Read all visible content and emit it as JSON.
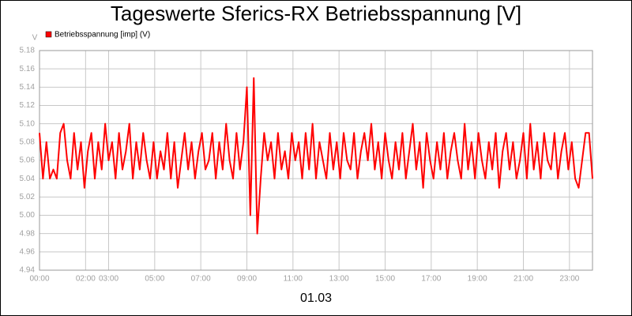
{
  "chart_data": {
    "type": "line",
    "title": "Tageswerte Sferics-RX Betriebsspannung [V]",
    "y_label": "V",
    "x_label": "01.03",
    "xlim": [
      0,
      24
    ],
    "xticks": [
      {
        "value": 0,
        "label": "00:00"
      },
      {
        "value": 2,
        "label": "02:00"
      },
      {
        "value": 3,
        "label": "03:00"
      },
      {
        "value": 5,
        "label": "05:00"
      },
      {
        "value": 7,
        "label": "07:00"
      },
      {
        "value": 9,
        "label": "09:00"
      },
      {
        "value": 11,
        "label": "11:00"
      },
      {
        "value": 13,
        "label": "13:00"
      },
      {
        "value": 15,
        "label": "15:00"
      },
      {
        "value": 17,
        "label": "17:00"
      },
      {
        "value": 19,
        "label": "19:00"
      },
      {
        "value": 21,
        "label": "21:00"
      },
      {
        "value": 23,
        "label": "23:00"
      }
    ],
    "ylim": [
      4.94,
      5.18
    ],
    "yticks": [
      4.94,
      4.96,
      4.98,
      {
        "value": 5,
        "label": "5.00"
      },
      5.02,
      5.04,
      5.06,
      5.08,
      {
        "value": 5.1,
        "label": "5.10"
      },
      5.12,
      5.14,
      5.16,
      5.18
    ],
    "grid": true,
    "x": [
      0,
      0.15,
      0.3,
      0.45,
      0.6,
      0.75,
      0.9,
      1.05,
      1.2,
      1.35,
      1.5,
      1.65,
      1.8,
      1.95,
      2.1,
      2.25,
      2.4,
      2.55,
      2.7,
      2.85,
      3,
      3.15,
      3.3,
      3.45,
      3.6,
      3.75,
      3.9,
      4.05,
      4.2,
      4.35,
      4.5,
      4.65,
      4.8,
      4.95,
      5.1,
      5.25,
      5.4,
      5.55,
      5.7,
      5.85,
      6,
      6.15,
      6.3,
      6.45,
      6.6,
      6.75,
      6.9,
      7.05,
      7.2,
      7.35,
      7.5,
      7.65,
      7.8,
      7.95,
      8.1,
      8.25,
      8.4,
      8.55,
      8.7,
      8.85,
      9,
      9.15,
      9.3,
      9.45,
      9.6,
      9.75,
      9.9,
      10.05,
      10.2,
      10.35,
      10.5,
      10.65,
      10.8,
      10.95,
      11.1,
      11.25,
      11.4,
      11.55,
      11.7,
      11.85,
      12,
      12.15,
      12.3,
      12.45,
      12.6,
      12.75,
      12.9,
      13.05,
      13.2,
      13.35,
      13.5,
      13.65,
      13.8,
      13.95,
      14.1,
      14.25,
      14.4,
      14.55,
      14.7,
      14.85,
      15,
      15.15,
      15.3,
      15.45,
      15.6,
      15.75,
      15.9,
      16.05,
      16.2,
      16.35,
      16.5,
      16.65,
      16.8,
      16.95,
      17.1,
      17.25,
      17.4,
      17.55,
      17.7,
      17.85,
      18,
      18.15,
      18.3,
      18.45,
      18.6,
      18.75,
      18.9,
      19.05,
      19.2,
      19.35,
      19.5,
      19.65,
      19.8,
      19.95,
      20.1,
      20.25,
      20.4,
      20.55,
      20.7,
      20.85,
      21,
      21.15,
      21.3,
      21.45,
      21.6,
      21.75,
      21.9,
      22.05,
      22.2,
      22.35,
      22.5,
      22.65,
      22.8,
      22.95,
      23.1,
      23.25,
      23.4,
      23.55,
      23.7,
      23.85,
      24
    ],
    "series": [
      {
        "name": "Betriebsspannung [imp] (V)",
        "color": "#ff0000",
        "values": [
          5.09,
          5.04,
          5.08,
          5.04,
          5.05,
          5.04,
          5.09,
          5.1,
          5.06,
          5.04,
          5.09,
          5.05,
          5.08,
          5.03,
          5.07,
          5.09,
          5.04,
          5.08,
          5.05,
          5.1,
          5.06,
          5.08,
          5.04,
          5.09,
          5.05,
          5.07,
          5.1,
          5.04,
          5.08,
          5.05,
          5.09,
          5.06,
          5.04,
          5.08,
          5.04,
          5.07,
          5.05,
          5.09,
          5.04,
          5.08,
          5.03,
          5.06,
          5.09,
          5.05,
          5.08,
          5.04,
          5.07,
          5.09,
          5.05,
          5.06,
          5.09,
          5.04,
          5.08,
          5.05,
          5.1,
          5.06,
          5.04,
          5.09,
          5.05,
          5.08,
          5.14,
          5.0,
          5.15,
          4.98,
          5.04,
          5.09,
          5.06,
          5.08,
          5.04,
          5.09,
          5.05,
          5.07,
          5.04,
          5.09,
          5.06,
          5.08,
          5.04,
          5.09,
          5.05,
          5.1,
          5.04,
          5.08,
          5.06,
          5.04,
          5.09,
          5.05,
          5.08,
          5.04,
          5.09,
          5.06,
          5.05,
          5.09,
          5.04,
          5.07,
          5.09,
          5.06,
          5.1,
          5.05,
          5.08,
          5.04,
          5.09,
          5.06,
          5.04,
          5.08,
          5.05,
          5.09,
          5.04,
          5.07,
          5.1,
          5.05,
          5.08,
          5.03,
          5.09,
          5.06,
          5.04,
          5.08,
          5.05,
          5.09,
          5.04,
          5.07,
          5.09,
          5.06,
          5.04,
          5.1,
          5.05,
          5.08,
          5.04,
          5.09,
          5.06,
          5.04,
          5.08,
          5.05,
          5.09,
          5.03,
          5.07,
          5.09,
          5.05,
          5.08,
          5.04,
          5.06,
          5.09,
          5.04,
          5.1,
          5.05,
          5.08,
          5.04,
          5.09,
          5.06,
          5.05,
          5.09,
          5.04,
          5.07,
          5.09,
          5.05,
          5.08,
          5.04,
          5.03,
          5.06,
          5.09,
          5.09,
          5.04
        ]
      }
    ]
  }
}
